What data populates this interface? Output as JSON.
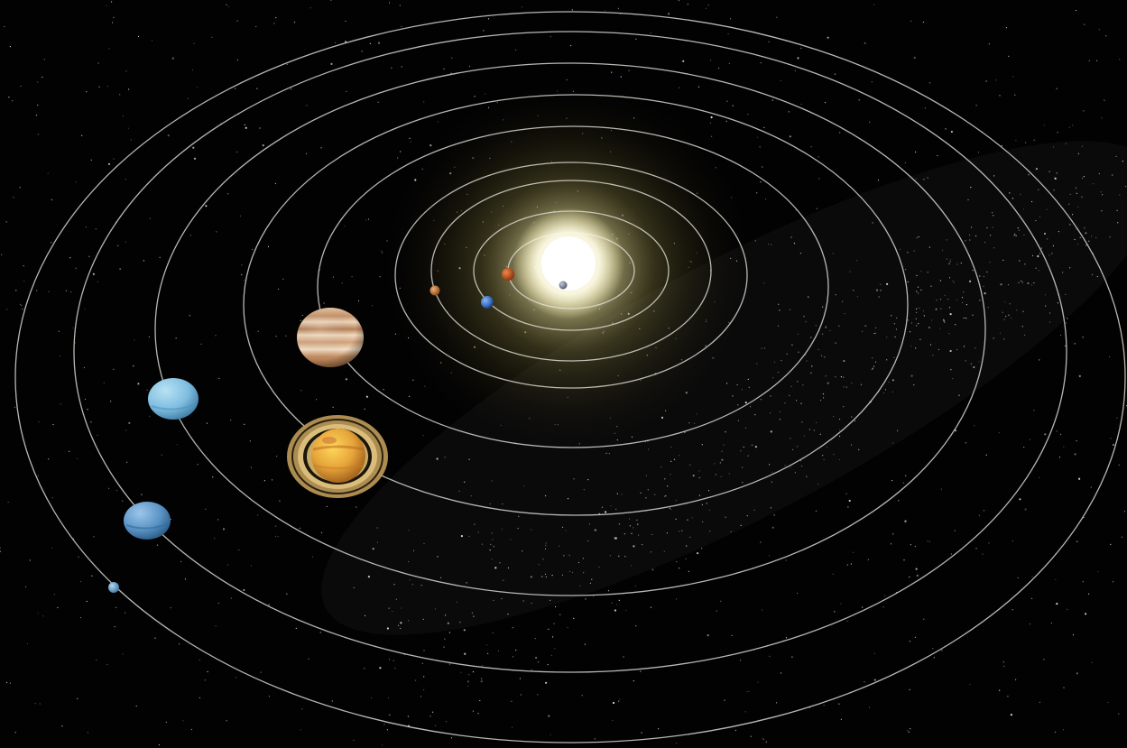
{
  "scene": {
    "background_color": "#020203",
    "orbit_line_color": "#d8d8d0",
    "sun": {
      "name": "sun",
      "core_color": "#ffffff",
      "glow_color": "#fff3b0",
      "halo_color": "#cfc27a"
    },
    "planets": [
      {
        "name": "mercury",
        "icon": "mercury-icon",
        "color": "#8a95a8"
      },
      {
        "name": "venus",
        "icon": "venus-icon",
        "color": "#d0581f"
      },
      {
        "name": "earth",
        "icon": "earth-icon",
        "color": "#3d74c9"
      },
      {
        "name": "mars",
        "icon": "mars-icon",
        "color": "#c87a3a"
      },
      {
        "name": "jupiter",
        "icon": "jupiter-icon",
        "color": "#d7a77e"
      },
      {
        "name": "saturn",
        "icon": "saturn-icon",
        "color": "#e6a43a",
        "ring_color": "#c8ac66"
      },
      {
        "name": "uranus",
        "icon": "uranus-icon",
        "color": "#7fbde0"
      },
      {
        "name": "neptune",
        "icon": "neptune-icon",
        "color": "#5a93c4"
      },
      {
        "name": "pluto",
        "icon": "pluto-icon",
        "color": "#6fa6d2"
      }
    ]
  }
}
